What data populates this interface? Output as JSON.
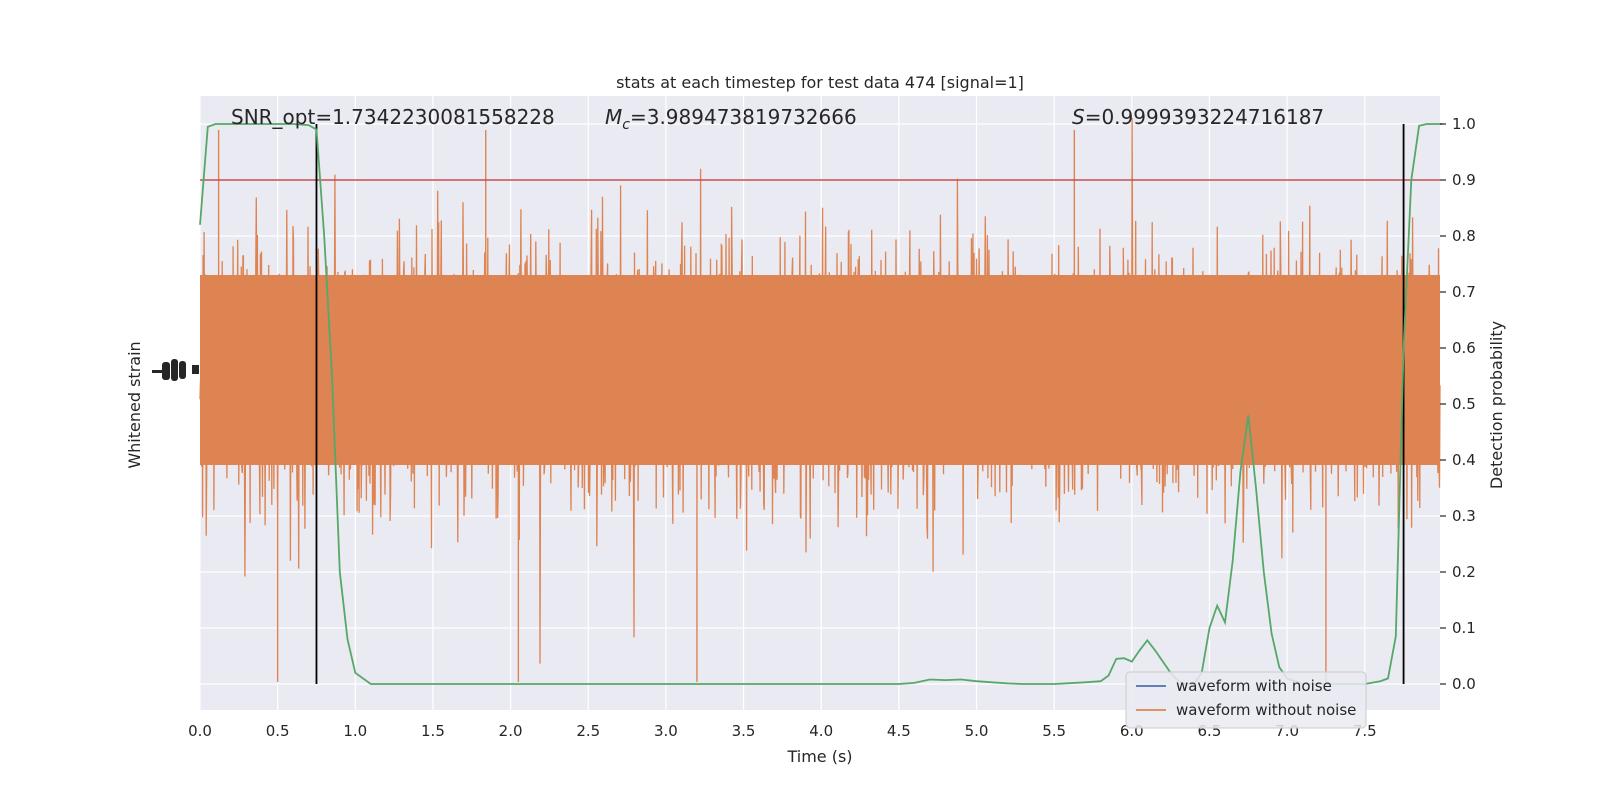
{
  "chart_data": {
    "type": "line",
    "title": "stats at each timestep for test data 474 [signal=1]",
    "xlabel": "Time (s)",
    "ylabel_left": "Whitened strain",
    "ylabel_right": "Detection probability",
    "xlim": [
      0.0,
      8.0
    ],
    "ylim_right": [
      -0.05,
      1.05
    ],
    "xticks": [
      "0.0",
      "0.5",
      "1.0",
      "1.5",
      "2.0",
      "2.5",
      "3.0",
      "3.5",
      "4.0",
      "4.5",
      "5.0",
      "5.5",
      "6.0",
      "6.5",
      "7.0",
      "7.5"
    ],
    "yticks_right": [
      "0.0",
      "0.1",
      "0.2",
      "0.3",
      "0.4",
      "0.5",
      "0.6",
      "0.7",
      "0.8",
      "0.9",
      "1.0"
    ],
    "grid": true,
    "annotations": {
      "snr": "SNR_opt=1.7342230081558228",
      "mc_symbol": "M",
      "mc_sub": "c",
      "mc_value": "=3.989473819732666",
      "s_symbol": "S",
      "s_value": "=0.9999393224716187"
    },
    "threshold": 0.9,
    "vertical_lines_x": [
      0.75,
      7.75
    ],
    "legend": {
      "placement": "lower-right",
      "entries": [
        "waveform with noise",
        "waveform without noise"
      ]
    },
    "detection_probability": {
      "x": [
        0.0,
        0.05,
        0.1,
        0.2,
        0.3,
        0.4,
        0.5,
        0.6,
        0.7,
        0.75,
        0.8,
        0.85,
        0.9,
        0.95,
        1.0,
        1.1,
        1.3,
        1.5,
        1.8,
        2.0,
        2.5,
        3.0,
        3.5,
        4.0,
        4.5,
        4.6,
        4.7,
        4.8,
        4.9,
        5.0,
        5.1,
        5.2,
        5.3,
        5.5,
        5.7,
        5.8,
        5.85,
        5.9,
        5.95,
        6.0,
        6.05,
        6.1,
        6.15,
        6.2,
        6.25,
        6.3,
        6.35,
        6.4,
        6.45,
        6.5,
        6.55,
        6.6,
        6.65,
        6.7,
        6.75,
        6.8,
        6.85,
        6.9,
        6.95,
        7.0,
        7.05,
        7.1,
        7.15,
        7.2,
        7.3,
        7.4,
        7.5,
        7.6,
        7.65,
        7.7,
        7.75,
        7.8,
        7.85,
        7.9,
        7.95,
        8.0
      ],
      "y": [
        0.82,
        0.995,
        1.0,
        1.0,
        1.0,
        1.0,
        1.0,
        1.0,
        0.998,
        0.99,
        0.8,
        0.55,
        0.2,
        0.08,
        0.02,
        0.0,
        0.0,
        0.0,
        0.0,
        0.0,
        0.0,
        0.0,
        0.0,
        0.0,
        0.0,
        0.002,
        0.008,
        0.007,
        0.008,
        0.005,
        0.003,
        0.001,
        0.0,
        0.0,
        0.003,
        0.005,
        0.015,
        0.045,
        0.046,
        0.04,
        0.06,
        0.078,
        0.06,
        0.04,
        0.02,
        0.005,
        0.0,
        0.0,
        0.02,
        0.1,
        0.14,
        0.11,
        0.22,
        0.38,
        0.48,
        0.35,
        0.2,
        0.09,
        0.03,
        0.01,
        0.005,
        0.0,
        0.0,
        0.0,
        0.0,
        0.0,
        0.0,
        0.005,
        0.01,
        0.085,
        0.6,
        0.9,
        0.997,
        1.0,
        1.0,
        1.0
      ]
    },
    "colors": {
      "plot_bg": "#eaeaf2",
      "noise": "#4c72b0",
      "waveform": "#dd8452",
      "probability": "#55a868",
      "threshold": "#c44e52",
      "vline": "#000000"
    }
  }
}
